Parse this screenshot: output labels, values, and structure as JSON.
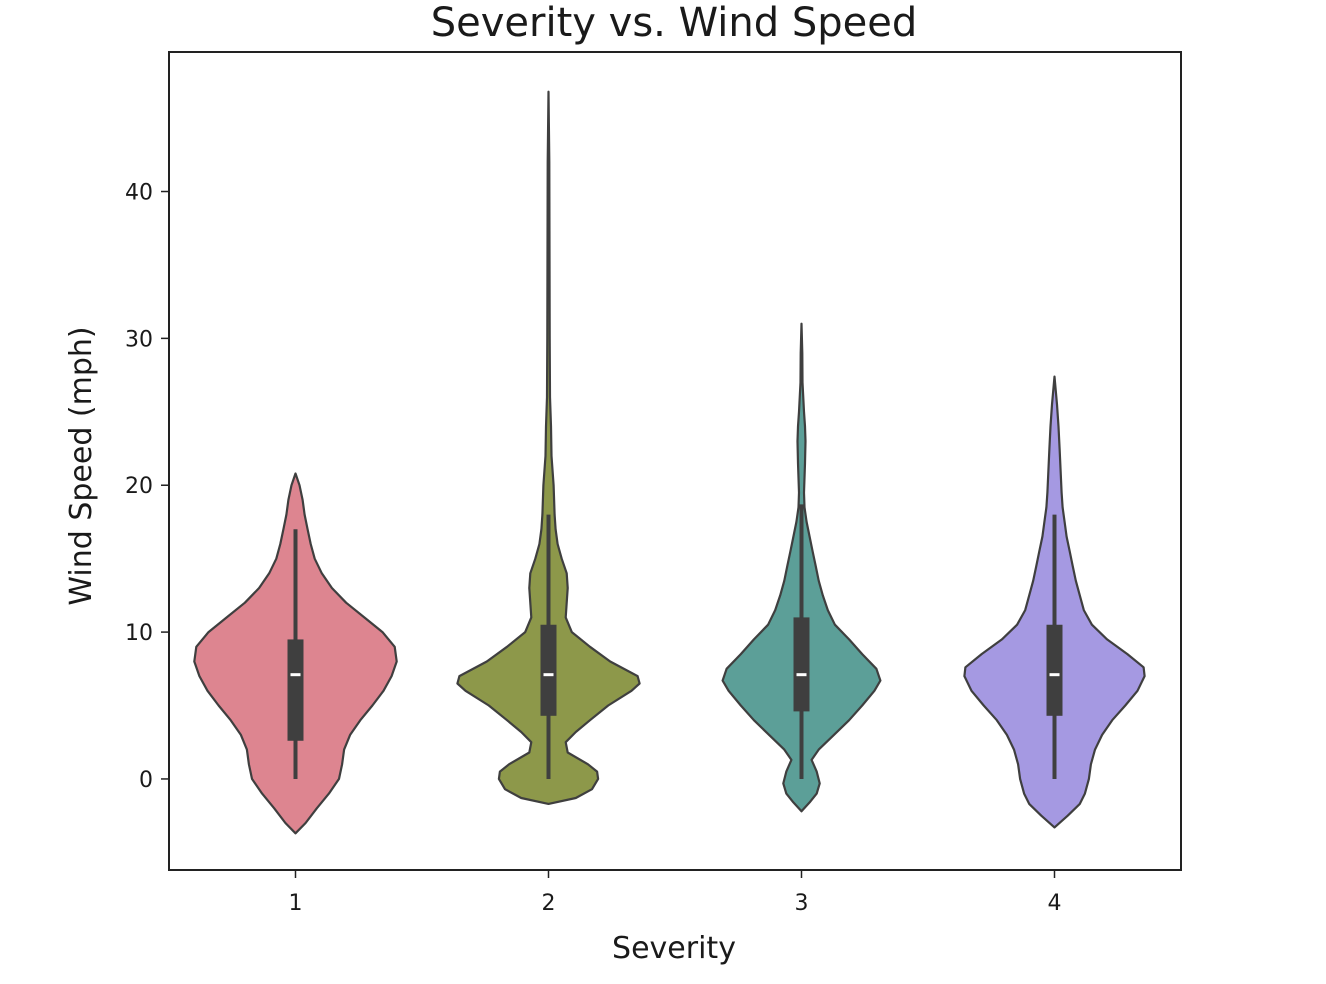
{
  "chart_data": {
    "type": "violin",
    "title": "Severity vs. Wind Speed",
    "xlabel": "Severity",
    "ylabel": "Wind Speed (mph)",
    "categories": [
      "1",
      "2",
      "3",
      "4"
    ],
    "ylim": [
      -6.2,
      49.5
    ],
    "yticks": [
      0,
      10,
      20,
      30,
      40
    ],
    "grid": false,
    "legend": false,
    "colors": [
      "#dd8590",
      "#8d984a",
      "#5c9f98",
      "#a599e2"
    ],
    "violins": [
      {
        "category": "1",
        "min": 0,
        "q1": 2.6,
        "median": 7.1,
        "q3": 9.5,
        "max": 17.0,
        "kde_top": 20.8,
        "kde_bottom": -3.7,
        "profile": [
          [
            -3.7,
            0
          ],
          [
            -3.0,
            0.1
          ],
          [
            -2.0,
            0.21
          ],
          [
            -1.0,
            0.33
          ],
          [
            0,
            0.43
          ],
          [
            1.0,
            0.46
          ],
          [
            2.0,
            0.48
          ],
          [
            3.0,
            0.54
          ],
          [
            4.0,
            0.64
          ],
          [
            5.0,
            0.76
          ],
          [
            6.0,
            0.87
          ],
          [
            7.0,
            0.95
          ],
          [
            8.0,
            1.0
          ],
          [
            9.0,
            0.98
          ],
          [
            10.0,
            0.86
          ],
          [
            11.0,
            0.68
          ],
          [
            12.0,
            0.5
          ],
          [
            13.0,
            0.36
          ],
          [
            14.0,
            0.26
          ],
          [
            15.0,
            0.19
          ],
          [
            16.0,
            0.15
          ],
          [
            17.0,
            0.12
          ],
          [
            18.0,
            0.09
          ],
          [
            19.0,
            0.07
          ],
          [
            20.0,
            0.04
          ],
          [
            20.8,
            0
          ]
        ]
      },
      {
        "category": "2",
        "min": 0,
        "q1": 4.3,
        "median": 7.1,
        "q3": 10.5,
        "max": 18.0,
        "kde_top": 46.8,
        "kde_bottom": -1.7,
        "profile": [
          [
            -1.7,
            0
          ],
          [
            -1.3,
            0.27
          ],
          [
            -0.7,
            0.43
          ],
          [
            0,
            0.49
          ],
          [
            0.5,
            0.48
          ],
          [
            1.0,
            0.39
          ],
          [
            1.8,
            0.19
          ],
          [
            2.5,
            0.17
          ],
          [
            3.2,
            0.27
          ],
          [
            4.0,
            0.41
          ],
          [
            5.0,
            0.59
          ],
          [
            6.0,
            0.82
          ],
          [
            6.5,
            0.9
          ],
          [
            7.0,
            0.88
          ],
          [
            8.0,
            0.61
          ],
          [
            9.0,
            0.41
          ],
          [
            10.0,
            0.23
          ],
          [
            11.0,
            0.17
          ],
          [
            12.0,
            0.18
          ],
          [
            13.0,
            0.19
          ],
          [
            14.0,
            0.18
          ],
          [
            15.0,
            0.13
          ],
          [
            16.0,
            0.09
          ],
          [
            17.0,
            0.07
          ],
          [
            18.0,
            0.06
          ],
          [
            20.0,
            0.05
          ],
          [
            22.0,
            0.03
          ],
          [
            24.0,
            0.025
          ],
          [
            26.0,
            0.015
          ],
          [
            30.0,
            0.012
          ],
          [
            36.0,
            0.01
          ],
          [
            42.0,
            0.008
          ],
          [
            46.8,
            0
          ]
        ]
      },
      {
        "category": "3",
        "min": 0,
        "q1": 4.6,
        "median": 7.1,
        "q3": 11.0,
        "max": 18.7,
        "kde_top": 31.0,
        "kde_bottom": -2.2,
        "profile": [
          [
            -2.2,
            0
          ],
          [
            -1.6,
            0.08
          ],
          [
            -1.0,
            0.15
          ],
          [
            -0.3,
            0.18
          ],
          [
            0.5,
            0.15
          ],
          [
            1.3,
            0.1
          ],
          [
            2.0,
            0.17
          ],
          [
            3.0,
            0.32
          ],
          [
            4.0,
            0.47
          ],
          [
            5.0,
            0.6
          ],
          [
            6.0,
            0.72
          ],
          [
            6.7,
            0.78
          ],
          [
            7.5,
            0.74
          ],
          [
            8.5,
            0.6
          ],
          [
            9.5,
            0.47
          ],
          [
            10.5,
            0.33
          ],
          [
            11.5,
            0.26
          ],
          [
            12.5,
            0.21
          ],
          [
            13.5,
            0.17
          ],
          [
            14.5,
            0.14
          ],
          [
            15.5,
            0.11
          ],
          [
            16.5,
            0.08
          ],
          [
            17.5,
            0.05
          ],
          [
            18.5,
            0.03
          ],
          [
            19.5,
            0.025
          ],
          [
            20.5,
            0.03
          ],
          [
            21.5,
            0.035
          ],
          [
            23.0,
            0.04
          ],
          [
            24.0,
            0.035
          ],
          [
            25.0,
            0.025
          ],
          [
            27.0,
            0.01
          ],
          [
            29.0,
            0.008
          ],
          [
            31.0,
            0
          ]
        ]
      },
      {
        "category": "4",
        "min": 0,
        "q1": 4.3,
        "median": 7.1,
        "q3": 10.5,
        "max": 18.0,
        "kde_top": 27.4,
        "kde_bottom": -3.3,
        "profile": [
          [
            -3.3,
            0
          ],
          [
            -2.5,
            0.13
          ],
          [
            -1.7,
            0.25
          ],
          [
            -1.0,
            0.3
          ],
          [
            0,
            0.34
          ],
          [
            1.0,
            0.36
          ],
          [
            2.0,
            0.4
          ],
          [
            3.0,
            0.47
          ],
          [
            4.0,
            0.57
          ],
          [
            5.0,
            0.7
          ],
          [
            6.0,
            0.82
          ],
          [
            7.0,
            0.89
          ],
          [
            7.6,
            0.88
          ],
          [
            8.5,
            0.72
          ],
          [
            9.5,
            0.52
          ],
          [
            10.5,
            0.37
          ],
          [
            11.5,
            0.29
          ],
          [
            12.5,
            0.25
          ],
          [
            13.5,
            0.21
          ],
          [
            14.5,
            0.18
          ],
          [
            15.5,
            0.15
          ],
          [
            16.5,
            0.12
          ],
          [
            17.5,
            0.1
          ],
          [
            18.5,
            0.08
          ],
          [
            19.5,
            0.07
          ],
          [
            21.0,
            0.06
          ],
          [
            22.5,
            0.05
          ],
          [
            24.0,
            0.04
          ],
          [
            25.5,
            0.025
          ],
          [
            27.4,
            0
          ]
        ]
      }
    ]
  }
}
